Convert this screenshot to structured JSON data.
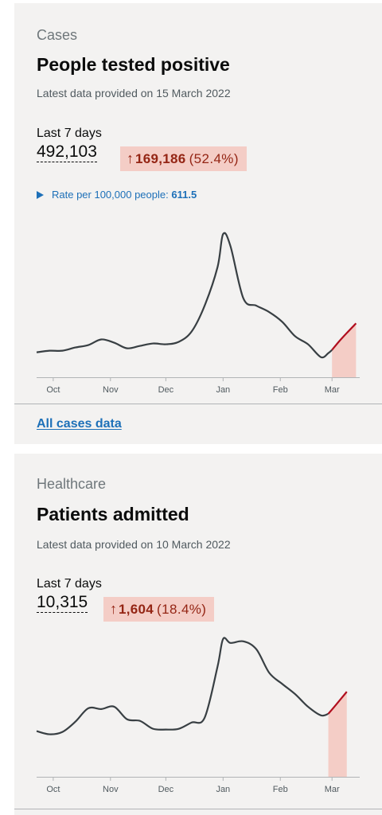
{
  "cases": {
    "caption": "Cases",
    "title": "People tested positive",
    "updated": "Latest data provided on 15 March 2022",
    "period": "Last 7 days",
    "value": "492,103",
    "change_amount": "169,186",
    "change_pct": "(52.4%)",
    "rate_label": "Rate per 100,000 people:",
    "rate_value": "611.5",
    "link": "All cases data"
  },
  "healthcare": {
    "caption": "Healthcare",
    "title": "Patients admitted",
    "updated": "Latest data provided on 10 March 2022",
    "period": "Last 7 days",
    "value": "10,315",
    "change_amount": "1,604",
    "change_pct": "(18.4%)"
  },
  "colors": {
    "line": "#383f43",
    "recent_line": "#b10e1e",
    "recent_fill": "#f4cdc6",
    "link": "#1d70b8"
  },
  "icons": {
    "change": "arrow-up-icon",
    "toggle": "triangle-right-icon"
  },
  "chart_data": [
    {
      "type": "line",
      "x": [
        "2021-09-22",
        "2021-09-29",
        "2021-10-06",
        "2021-10-13",
        "2021-10-20",
        "2021-10-27",
        "2021-11-03",
        "2021-11-10",
        "2021-11-17",
        "2021-11-24",
        "2021-12-01",
        "2021-12-08",
        "2021-12-15",
        "2021-12-22",
        "2021-12-29",
        "2022-01-01",
        "2022-01-05",
        "2022-01-12",
        "2022-01-19",
        "2022-01-26",
        "2022-02-02",
        "2022-02-09",
        "2022-02-16",
        "2022-02-23",
        "2022-02-27",
        "2022-03-01",
        "2022-03-05",
        "2022-03-09",
        "2022-03-14"
      ],
      "y": [
        31,
        33,
        33,
        37,
        40,
        47,
        43,
        36,
        39,
        42,
        41,
        44,
        57,
        89,
        137,
        178,
        163,
        98,
        89,
        81,
        69,
        51,
        41,
        25,
        30,
        34,
        45,
        55,
        67
      ],
      "xtick_labels": [
        "Oct",
        "Nov",
        "Dec",
        "Jan",
        "Feb",
        "Mar"
      ],
      "recent_from": "2022-03-01",
      "ylim": [
        0,
        190
      ]
    },
    {
      "type": "line",
      "x": [
        "2021-09-22",
        "2021-09-29",
        "2021-10-06",
        "2021-10-13",
        "2021-10-20",
        "2021-10-27",
        "2021-11-03",
        "2021-11-10",
        "2021-11-17",
        "2021-11-24",
        "2021-12-01",
        "2021-12-08",
        "2021-12-15",
        "2021-12-22",
        "2021-12-29",
        "2022-01-01",
        "2022-01-05",
        "2022-01-12",
        "2022-01-19",
        "2022-01-26",
        "2022-02-02",
        "2022-02-09",
        "2022-02-16",
        "2022-02-23",
        "2022-02-27",
        "2022-03-03",
        "2022-03-09"
      ],
      "y": [
        58,
        54,
        57,
        70,
        87,
        86,
        89,
        73,
        71,
        61,
        60,
        61,
        69,
        75,
        140,
        175,
        170,
        172,
        162,
        132,
        118,
        105,
        89,
        78,
        80,
        91,
        108
      ],
      "xtick_labels": [
        "Oct",
        "Nov",
        "Dec",
        "Jan",
        "Feb",
        "Mar"
      ],
      "recent_from": "2022-02-27",
      "ylim": [
        0,
        190
      ]
    }
  ]
}
